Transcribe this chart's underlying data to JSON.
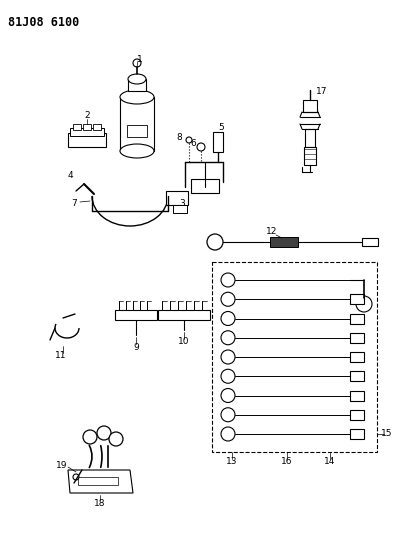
{
  "title": "81J08 6100",
  "bg": "#ffffff",
  "lc": "#000000",
  "figsize": [
    3.97,
    5.33
  ],
  "dpi": 100
}
